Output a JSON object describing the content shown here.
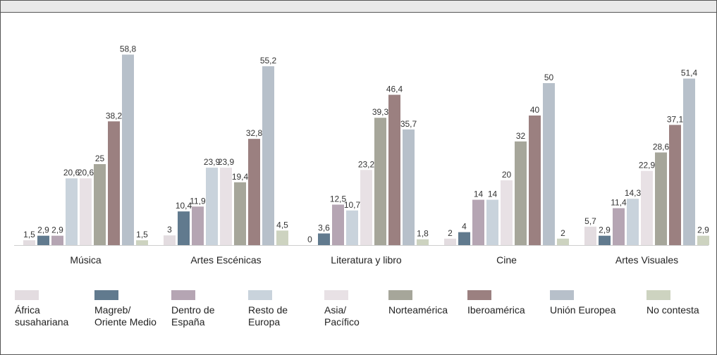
{
  "chart_data": {
    "type": "bar",
    "categories": [
      "Música",
      "Artes Escénicas",
      "Literatura y libro",
      "Cine",
      "Artes Visuales"
    ],
    "series": [
      {
        "name": "África susahariana",
        "color": "#e3dce0",
        "values": [
          1.5,
          3,
          0,
          2,
          5.7
        ]
      },
      {
        "name": "Magreb/ Oriente Medio",
        "color": "#617a8e",
        "values": [
          2.9,
          10.4,
          3.6,
          4,
          2.9
        ]
      },
      {
        "name": "Dentro de España",
        "color": "#b5a5b3",
        "values": [
          2.9,
          11.9,
          12.5,
          14,
          11.4
        ]
      },
      {
        "name": "Resto de Europa",
        "color": "#c9d3dc",
        "values": [
          20.6,
          23.9,
          10.7,
          14,
          14.3
        ]
      },
      {
        "name": "Asia/ Pacífico",
        "color": "#e8e1e5",
        "values": [
          20.6,
          23.9,
          23.2,
          20,
          22.9
        ]
      },
      {
        "name": "Norteamérica",
        "color": "#a6a69a",
        "values": [
          25,
          19.4,
          39.3,
          32,
          28.6
        ]
      },
      {
        "name": "Iberoamérica",
        "color": "#9b8080",
        "values": [
          38.2,
          32.8,
          46.4,
          40,
          37.1
        ]
      },
      {
        "name": "Unión Europea",
        "color": "#b7c0ca",
        "values": [
          58.8,
          55.2,
          35.7,
          50,
          51.4
        ]
      },
      {
        "name": "No contesta",
        "color": "#cdd3c0",
        "values": [
          1.5,
          4.5,
          1.8,
          2,
          2.9
        ]
      }
    ],
    "value_labels": [
      [
        "1,5",
        "2,9",
        "2,9",
        "20,6",
        "20,6",
        "25",
        "38,2",
        "58,8",
        "1,5"
      ],
      [
        "3",
        "10,4",
        "11,9",
        "23,9",
        "23,9",
        "19,4",
        "32,8",
        "55,2",
        "4,5"
      ],
      [
        "0",
        "3,6",
        "12,5",
        "10,7",
        "23,2",
        "39,3",
        "46,4",
        "35,7",
        "1,8"
      ],
      [
        "2",
        "4",
        "14",
        "14",
        "20",
        "32",
        "40",
        "50",
        "2"
      ],
      [
        "5,7",
        "2,9",
        "11,4",
        "14,3",
        "22,9",
        "28,6",
        "37,1",
        "51,4",
        "2,9"
      ]
    ],
    "legend_labels": [
      "África\nsusahariana",
      "Magreb/\nOriente Medio",
      "Dentro de\nEspaña",
      "Resto de\nEuropa",
      "Asia/\nPacífico",
      "Norteamérica",
      "Iberoamérica",
      "Unión Europea",
      "No contesta"
    ],
    "legend_position": "bottom",
    "ylim": [
      0,
      60
    ],
    "grid": false
  }
}
